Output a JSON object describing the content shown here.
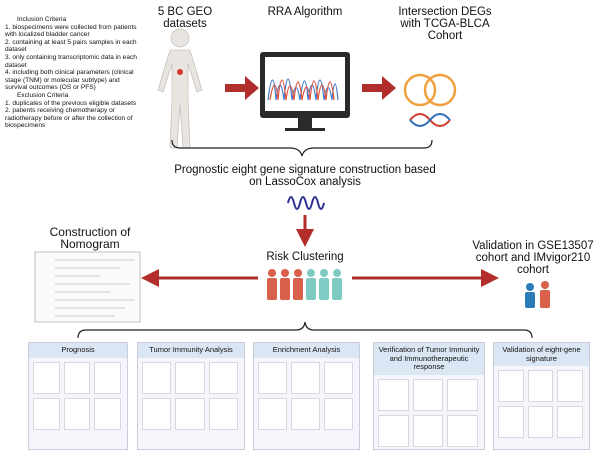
{
  "criteria": {
    "inclusion_title": "Inclusion Criteria",
    "inclusion": [
      "1. biospecimens were collected from patients with localized bladder cancer",
      "2. containing at least 5 pairs samples in each dataset",
      "3. only containing transcriptomic data in each dataset",
      "4. including both clinical parameters (clinical stage (TNM) or molecular subtype) and survival outcomes (OS or PFS)"
    ],
    "exclusion_title": "Exclusion Criteria",
    "exclusion": [
      "1. duplicates of the previous eligible datasets",
      "2. patients receiving chemotherapy or radiotherapy before or after the collection of biospecimens"
    ]
  },
  "steps": {
    "datasets": "5 BC GEO datasets",
    "rra": "RRA Algorithm",
    "intersection": "Intersection DEGs with TCGA-BLCA Cohort",
    "signature": "Prognostic eight gene signature construction based on LassoCox analysis",
    "nomogram": "Construction of Nomogram",
    "risk": "Risk Clustering",
    "validation": "Validation in GSE13507 cohort and IMvigor210 cohort"
  },
  "panels": [
    {
      "title": "Prognosis"
    },
    {
      "title": "Tumor Immunity Analysis"
    },
    {
      "title": "Enrichment Analysis"
    },
    {
      "title": "Verification of Tumor Immunity and Immunotherapeutic response"
    },
    {
      "title": "Validation of eight-gene signature"
    }
  ]
}
